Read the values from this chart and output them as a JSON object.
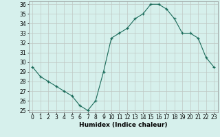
{
  "xlabel": "Humidex (Indice chaleur)",
  "x": [
    0,
    1,
    2,
    3,
    4,
    5,
    6,
    7,
    8,
    9,
    10,
    11,
    12,
    13,
    14,
    15,
    16,
    17,
    18,
    19,
    20,
    21,
    22,
    23
  ],
  "y": [
    29.5,
    28.5,
    28.0,
    27.5,
    27.0,
    26.5,
    25.5,
    25.0,
    26.0,
    29.0,
    32.5,
    33.0,
    33.5,
    34.5,
    35.0,
    36.0,
    36.0,
    35.5,
    34.5,
    33.0,
    33.0,
    32.5,
    30.5,
    29.5
  ],
  "line_color": "#1a6b5a",
  "marker_color": "#1a6b5a",
  "bg_color": "#d6f0ec",
  "grid_color": "#c0c8c4",
  "ylim_min": 24.8,
  "ylim_max": 36.3,
  "yticks": [
    25,
    26,
    27,
    28,
    29,
    30,
    31,
    32,
    33,
    34,
    35,
    36
  ],
  "tick_fontsize": 5.5,
  "label_fontsize": 6.5
}
